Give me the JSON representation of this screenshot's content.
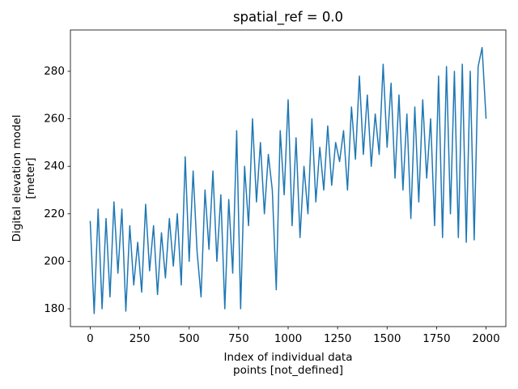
{
  "chart_data": {
    "type": "line",
    "title": "spatial_ref = 0.0",
    "xlabel": [
      "Index of individual data",
      "points [not_defined]"
    ],
    "ylabel": [
      "Digital elevation model",
      "[meter]"
    ],
    "color": "#1f77b4",
    "xlim": [
      -100,
      2100
    ],
    "xticks": [
      0,
      250,
      500,
      750,
      1000,
      1250,
      1500,
      1750,
      2000
    ],
    "ylim": [
      172.5,
      297.4
    ],
    "yticks": [
      180,
      200,
      220,
      240,
      260,
      280
    ],
    "x": [
      0,
      20,
      40,
      60,
      80,
      100,
      120,
      140,
      160,
      180,
      200,
      220,
      240,
      260,
      280,
      300,
      320,
      340,
      360,
      380,
      400,
      420,
      440,
      460,
      480,
      500,
      520,
      540,
      560,
      580,
      600,
      620,
      640,
      660,
      680,
      700,
      720,
      740,
      760,
      780,
      800,
      820,
      840,
      860,
      880,
      900,
      920,
      940,
      960,
      980,
      1000,
      1020,
      1040,
      1060,
      1080,
      1100,
      1120,
      1140,
      1160,
      1180,
      1200,
      1220,
      1240,
      1260,
      1280,
      1300,
      1320,
      1340,
      1360,
      1380,
      1400,
      1420,
      1440,
      1460,
      1480,
      1500,
      1520,
      1540,
      1560,
      1580,
      1600,
      1620,
      1640,
      1660,
      1680,
      1700,
      1720,
      1740,
      1760,
      1780,
      1800,
      1820,
      1840,
      1860,
      1880,
      1900,
      1920,
      1940,
      1960,
      1980,
      2000
    ],
    "values": [
      217,
      178,
      222,
      180,
      218,
      185,
      225,
      195,
      222,
      179,
      215,
      190,
      208,
      187,
      224,
      196,
      215,
      186,
      212,
      193,
      218,
      198,
      220,
      190,
      244,
      200,
      238,
      204,
      185,
      230,
      205,
      238,
      200,
      228,
      180,
      226,
      195,
      255,
      180,
      240,
      215,
      260,
      225,
      250,
      220,
      245,
      230,
      188,
      255,
      228,
      268,
      215,
      252,
      210,
      240,
      220,
      260,
      225,
      248,
      230,
      257,
      232,
      250,
      242,
      255,
      230,
      265,
      243,
      278,
      245,
      270,
      240,
      262,
      245,
      283,
      248,
      275,
      235,
      270,
      230,
      262,
      218,
      265,
      225,
      268,
      235,
      260,
      215,
      278,
      210,
      282,
      220,
      280,
      210,
      283,
      208,
      280,
      209,
      282,
      290,
      260
    ]
  }
}
